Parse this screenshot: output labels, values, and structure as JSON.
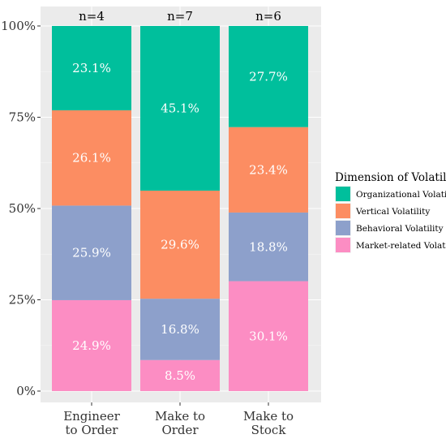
{
  "chart_data": {
    "type": "bar",
    "stacked": true,
    "categories": [
      [
        "Engineer",
        "to Order"
      ],
      [
        "Make to",
        "Order"
      ],
      [
        "Make to",
        "Stock"
      ]
    ],
    "category_counts": [
      "n=4",
      "n=7",
      "n=6"
    ],
    "series": [
      {
        "name": "Market-related Volatility",
        "color": "#FC8DC3",
        "values": [
          24.9,
          8.5,
          30.1
        ],
        "labels": [
          "24.9%",
          "8.5%",
          "30.1%"
        ]
      },
      {
        "name": "Behavioral Volatility",
        "color": "#8DA0CB",
        "values": [
          25.9,
          16.8,
          18.8
        ],
        "labels": [
          "25.9%",
          "16.8%",
          "18.8%"
        ]
      },
      {
        "name": "Vertical Volatility",
        "color": "#FC8D62",
        "values": [
          26.1,
          29.6,
          23.4
        ],
        "labels": [
          "26.1%",
          "29.6%",
          "23.4%"
        ]
      },
      {
        "name": "Organizational Volatility",
        "color": "#00BF9C",
        "values": [
          23.1,
          45.1,
          27.7
        ],
        "labels": [
          "23.1%",
          "45.1%",
          "27.7%"
        ]
      }
    ],
    "y_ticks": [
      0,
      25,
      50,
      75,
      100
    ],
    "y_tick_labels": [
      "0%",
      "25%",
      "50%",
      "75%",
      "100%"
    ],
    "ylim": [
      0,
      100
    ],
    "grid": true,
    "legend": {
      "title": "Dimension of Volatility",
      "placement": "right",
      "order": [
        "Organizational Volatility",
        "Vertical Volatility",
        "Behavioral Volatility",
        "Market-related Volatility"
      ]
    }
  }
}
